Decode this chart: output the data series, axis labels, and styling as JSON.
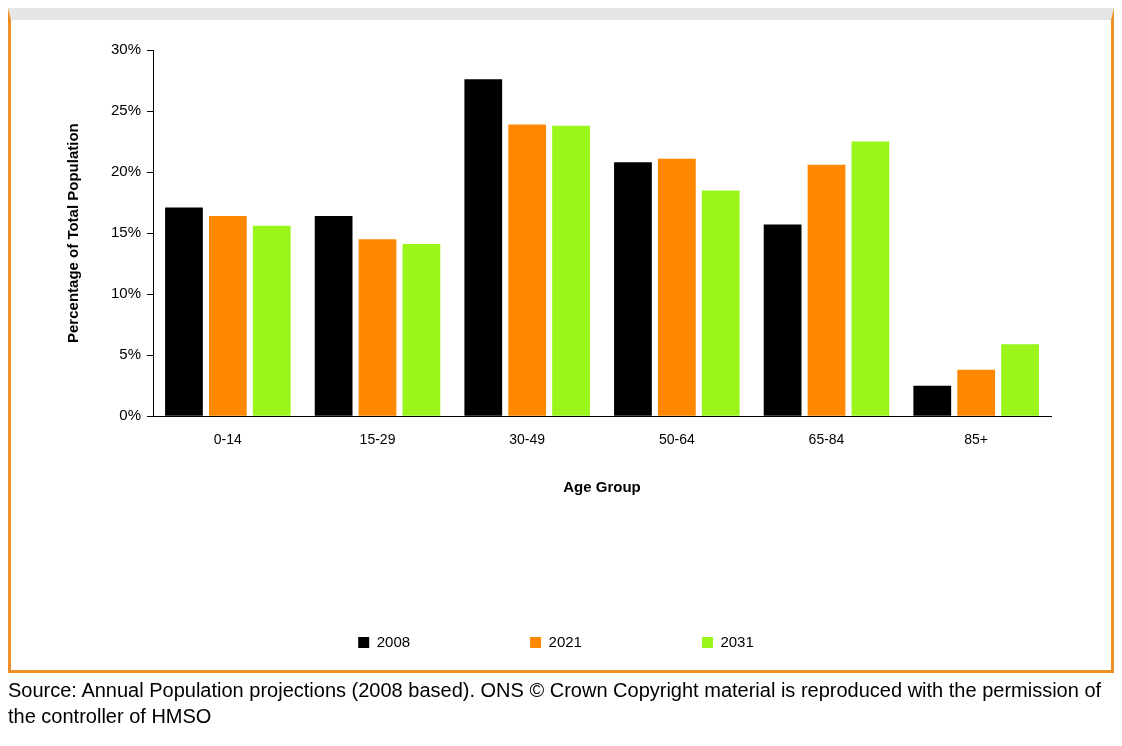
{
  "chart_data": {
    "type": "bar",
    "xlabel": "Age Group",
    "ylabel": "Percentage of Total Population",
    "categories": [
      "0-14",
      "15-29",
      "30-49",
      "50-64",
      "65-84",
      "85+"
    ],
    "series": [
      {
        "name": "2008",
        "color": "#000000",
        "values": [
          17.1,
          16.4,
          27.6,
          20.8,
          15.7,
          2.5
        ]
      },
      {
        "name": "2021",
        "color": "#ff8800",
        "values": [
          16.4,
          14.5,
          23.9,
          21.1,
          20.6,
          3.8
        ]
      },
      {
        "name": "2031",
        "color": "#99f51a",
        "values": [
          15.6,
          14.1,
          23.8,
          18.5,
          22.5,
          5.9
        ]
      }
    ],
    "ylim": [
      0,
      30
    ],
    "yticks": [
      {
        "value": 0,
        "label": "0%"
      },
      {
        "value": 5,
        "label": "5%"
      },
      {
        "value": 10,
        "label": "10%"
      },
      {
        "value": 15,
        "label": "15%"
      },
      {
        "value": 20,
        "label": "20%"
      },
      {
        "value": 25,
        "label": "25%"
      },
      {
        "value": 30,
        "label": "30%"
      }
    ],
    "grid": false,
    "legend": "bottom",
    "annotations": [
      "Source:  Annual Population projections (2008 based). ONS © Crown Copyright material is reproduced with the permission of the controller of HMSO"
    ]
  }
}
